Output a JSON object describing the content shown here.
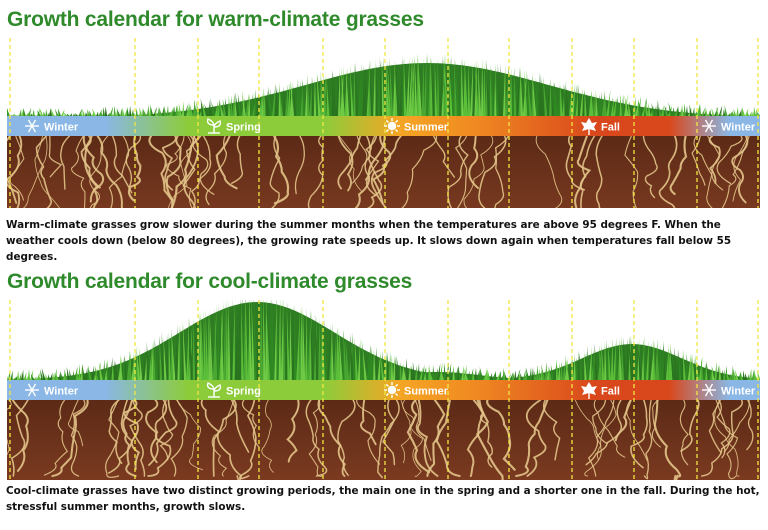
{
  "panels": [
    {
      "title": "Growth calendar for warm-climate grasses",
      "seasons": [
        "Winter",
        "Spring",
        "Summer",
        "Fall",
        "Winter"
      ],
      "season_icons": [
        "snowflake-icon",
        "sprout-icon",
        "sun-icon",
        "leaf-icon",
        "snowflake-icon"
      ],
      "caption": "Warm-climate grasses grow slower during the summer months when the temperatures are above 95 degrees F. When the weather cools down (below 80 degrees), the growing rate speeds up. It slows down again when temperatures fall below 55 degrees."
    },
    {
      "title": "Growth calendar for cool-climate grasses",
      "seasons": [
        "Winter",
        "Spring",
        "Summer",
        "Fall",
        "Winter"
      ],
      "season_icons": [
        "snowflake-icon",
        "sprout-icon",
        "sun-icon",
        "leaf-icon",
        "snowflake-icon"
      ],
      "caption": "Cool-climate grasses have two distinct growing periods, the main one in the spring and a shorter one in the fall. During the hot, stressful summer months, growth slows."
    }
  ],
  "colors": {
    "title_green": "#2f8a2c",
    "winter_blue": "#8ab7e6",
    "spring_green": "#8ccc3a",
    "summer_orange": "#f4a624",
    "fall_red": "#d9481c",
    "soil_brown": "#7a3a20",
    "root_tan": "#e3c48a",
    "grass_green": "#3f9a2a",
    "guide_yellow": "#f2e641"
  }
}
